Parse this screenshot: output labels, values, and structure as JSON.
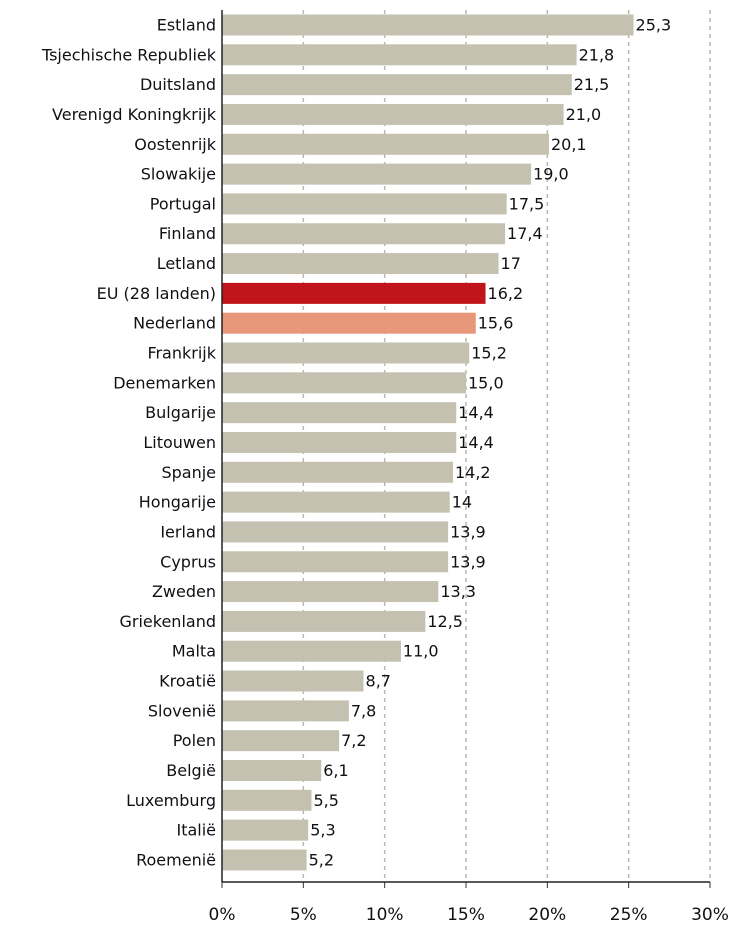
{
  "chart_data": {
    "type": "bar",
    "orientation": "horizontal",
    "categories": [
      "Estland",
      "Tsjechische Republiek",
      "Duitsland",
      "Verenigd Koningkrijk",
      "Oostenrijk",
      "Slowakije",
      "Portugal",
      "Finland",
      "Letland",
      "EU (28 landen)",
      "Nederland",
      "Frankrijk",
      "Denemarken",
      "Bulgarije",
      "Litouwen",
      "Spanje",
      "Hongarije",
      "Ierland",
      "Cyprus",
      "Zweden",
      "Griekenland",
      "Malta",
      "Kroatië",
      "Slovenië",
      "Polen",
      "België",
      "Luxemburg",
      "Italië",
      "Roemenië"
    ],
    "values": [
      25.3,
      21.8,
      21.5,
      21.0,
      20.1,
      19.0,
      17.5,
      17.4,
      17,
      16.2,
      15.6,
      15.2,
      15.0,
      14.4,
      14.4,
      14.2,
      14,
      13.9,
      13.9,
      13.3,
      12.5,
      11.0,
      8.7,
      7.8,
      7.2,
      6.1,
      5.5,
      5.3,
      5.2
    ],
    "value_labels": [
      "25,3",
      "21,8",
      "21,5",
      "21,0",
      "20,1",
      "19,0",
      "17,5",
      "17,4",
      "17",
      "16,2",
      "15,6",
      "15,2",
      "15,0",
      "14,4",
      "14,4",
      "14,2",
      "14",
      "13,9",
      "13,9",
      "13,3",
      "12,5",
      "11,0",
      "8,7",
      "7,8",
      "7,2",
      "6,1",
      "5,5",
      "5,3",
      "5,2"
    ],
    "colors": [
      "#c5c1b1",
      "#c5c1b1",
      "#c5c1b1",
      "#c5c1b1",
      "#c5c1b1",
      "#c5c1b1",
      "#c5c1b1",
      "#c5c1b1",
      "#c5c1b1",
      "#c0141b",
      "#e8977a",
      "#c5c1b1",
      "#c5c1b1",
      "#c5c1b1",
      "#c5c1b1",
      "#c5c1b1",
      "#c5c1b1",
      "#c5c1b1",
      "#c5c1b1",
      "#c5c1b1",
      "#c5c1b1",
      "#c5c1b1",
      "#c5c1b1",
      "#c5c1b1",
      "#c5c1b1",
      "#c5c1b1",
      "#c5c1b1",
      "#c5c1b1",
      "#c5c1b1"
    ],
    "xlim": [
      0,
      30
    ],
    "xticks": [
      {
        "value": 0,
        "label": "0%"
      },
      {
        "value": 5,
        "label": "5%"
      },
      {
        "value": 10,
        "label": "10%"
      },
      {
        "value": 15,
        "label": "15%"
      },
      {
        "value": 20,
        "label": "20%"
      },
      {
        "value": 25,
        "label": "25%"
      },
      {
        "value": 30,
        "label": "30%"
      }
    ],
    "grid": true
  }
}
